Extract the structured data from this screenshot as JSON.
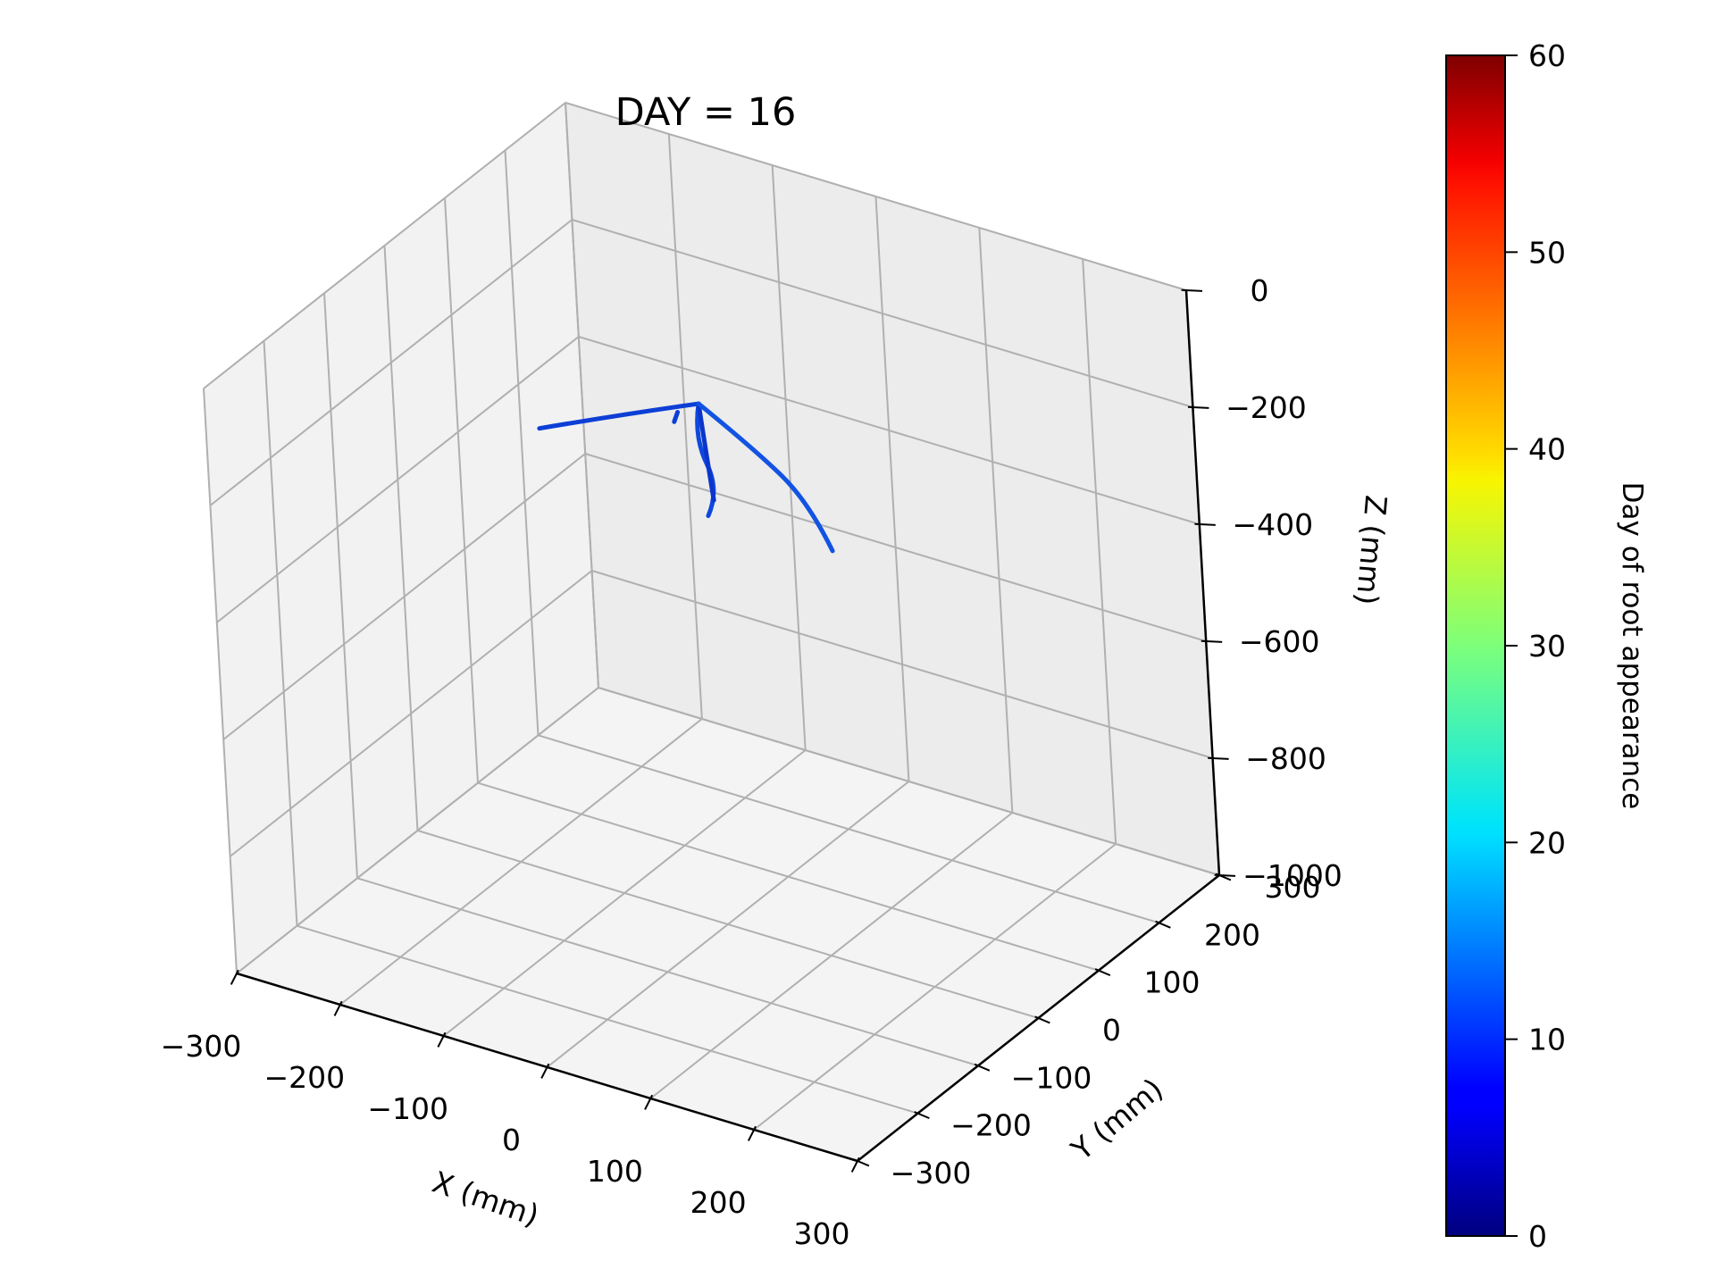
{
  "chart_data": {
    "type": "line3d",
    "title": "DAY = 16",
    "xlabel": "X (mm)",
    "ylabel": "Y (mm)",
    "zlabel": "Z (mm)",
    "xlim": [
      -300,
      300
    ],
    "ylim": [
      -300,
      300
    ],
    "zlim": [
      -1000,
      0
    ],
    "x_ticks": [
      -300,
      -200,
      -100,
      0,
      100,
      200,
      300
    ],
    "x_tick_labels": [
      "−300",
      "−200",
      "−100",
      "0",
      "100",
      "200",
      "300"
    ],
    "y_ticks": [
      -300,
      -200,
      -100,
      0,
      100,
      200,
      300
    ],
    "y_tick_labels": [
      "−300",
      "−200",
      "−100",
      "0",
      "100",
      "200",
      "300"
    ],
    "z_ticks": [
      0,
      -200,
      -400,
      -600,
      -800,
      -1000
    ],
    "z_tick_labels": [
      "0",
      "−200",
      "−400",
      "−600",
      "−800",
      "−1000"
    ],
    "grid": true,
    "colormap": "jet",
    "colorbar": {
      "label": "Day of root appearance",
      "min": 0,
      "max": 60,
      "ticks": [
        0,
        10,
        20,
        30,
        40,
        50,
        60
      ],
      "tick_labels": [
        "0",
        "10",
        "20",
        "30",
        "40",
        "50",
        "60"
      ]
    },
    "series": [
      {
        "points": [
          [
            0,
            0,
            -110
          ],
          [
            -60,
            -25,
            -140
          ],
          [
            -130,
            -45,
            -185
          ]
        ],
        "color": "#0d3fd6"
      },
      {
        "points": [
          [
            0,
            0,
            -110
          ],
          [
            -22,
            25,
            -200
          ],
          [
            -12,
            45,
            -300
          ],
          [
            -40,
            70,
            -380
          ]
        ],
        "color": "#0f48de"
      },
      {
        "points": [
          [
            0,
            0,
            -110
          ],
          [
            -8,
            20,
            -210
          ],
          [
            -12,
            35,
            -310
          ]
        ],
        "color": "#0b36cc"
      },
      {
        "points": [
          [
            0,
            0,
            -110
          ],
          [
            45,
            10,
            -170
          ],
          [
            90,
            20,
            -245
          ],
          [
            105,
            30,
            -330
          ]
        ],
        "color": "#1253e3"
      },
      {
        "points": [
          [
            -18,
            -5,
            -130
          ],
          [
            -20,
            -8,
            -145
          ]
        ],
        "color": "#0d3fd6"
      }
    ]
  }
}
